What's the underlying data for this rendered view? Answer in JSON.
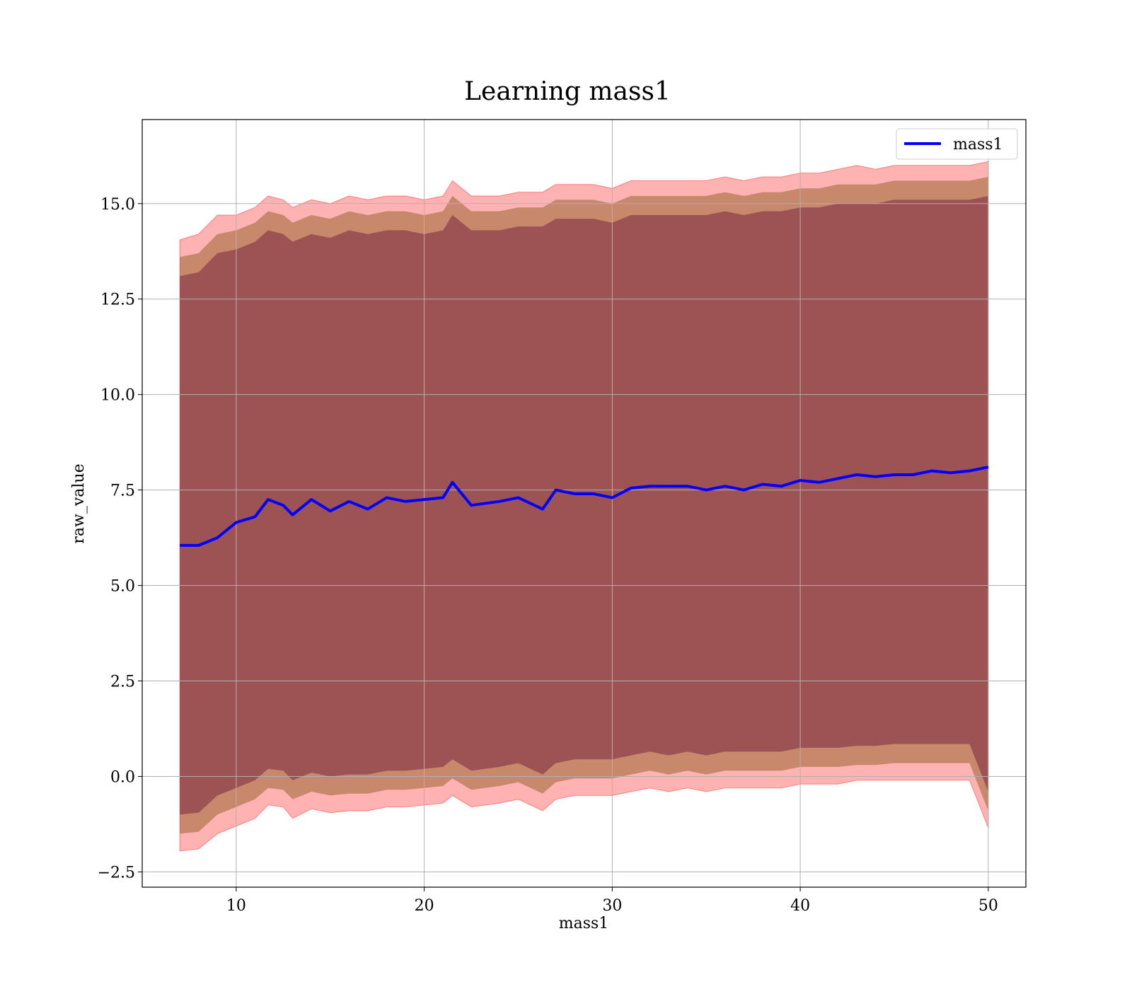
{
  "chart_data": {
    "type": "area",
    "title": "Learning mass1",
    "xlabel": "mass1",
    "ylabel": "raw_value",
    "xlim": [
      5,
      52
    ],
    "ylim": [
      -2.9,
      17.2
    ],
    "grid": true,
    "legend": {
      "location": "upper right",
      "entries": [
        "mass1"
      ]
    },
    "x_ticks": [
      10,
      20,
      30,
      40,
      50
    ],
    "x_tick_labels": [
      "10",
      "20",
      "30",
      "40",
      "50"
    ],
    "y_ticks": [
      -2.5,
      0.0,
      2.5,
      5.0,
      7.5,
      10.0,
      12.5,
      15.0
    ],
    "y_tick_labels": [
      "−2.5",
      "0.0",
      "2.5",
      "5.0",
      "7.5",
      "10.0",
      "12.5",
      "15.0"
    ],
    "colors": {
      "line": "#0000ff",
      "band_outer": "#ff0000",
      "band_middle": "#996633",
      "band_inner": "#7a2840",
      "grid": "#b0b0b0"
    },
    "series": [
      {
        "name": "mass1",
        "x": [
          7.0,
          8.0,
          9.0,
          10.0,
          11.0,
          11.7,
          12.5,
          13.0,
          14.0,
          15.0,
          16.0,
          17.0,
          18.0,
          19.0,
          20.0,
          21.0,
          21.5,
          22.5,
          24.0,
          25.0,
          26.3,
          27.0,
          28.0,
          29.0,
          30.0,
          31.0,
          32.0,
          33.0,
          34.0,
          35.0,
          36.0,
          37.0,
          38.0,
          39.0,
          40.0,
          41.0,
          42.0,
          43.0,
          44.0,
          45.0,
          46.0,
          47.0,
          48.0,
          49.0,
          50.0
        ],
        "y": [
          6.05,
          6.05,
          6.25,
          6.65,
          6.8,
          7.25,
          7.1,
          6.85,
          7.25,
          6.95,
          7.2,
          7.0,
          7.3,
          7.2,
          7.25,
          7.3,
          7.7,
          7.1,
          7.2,
          7.3,
          7.0,
          7.5,
          7.4,
          7.4,
          7.3,
          7.55,
          7.6,
          7.6,
          7.6,
          7.5,
          7.6,
          7.5,
          7.65,
          7.6,
          7.75,
          7.7,
          7.8,
          7.9,
          7.85,
          7.9,
          7.9,
          8.0,
          7.95,
          8.0,
          8.1
        ],
        "band_outer": {
          "upper": [
            14.05,
            14.2,
            14.7,
            14.7,
            14.9,
            15.2,
            15.1,
            14.9,
            15.1,
            15.0,
            15.2,
            15.1,
            15.2,
            15.2,
            15.1,
            15.2,
            15.6,
            15.2,
            15.2,
            15.3,
            15.3,
            15.5,
            15.5,
            15.5,
            15.4,
            15.6,
            15.6,
            15.6,
            15.6,
            15.6,
            15.7,
            15.6,
            15.7,
            15.7,
            15.8,
            15.8,
            15.9,
            16.0,
            15.9,
            16.0,
            16.0,
            16.0,
            16.0,
            16.0,
            16.1
          ],
          "lower": [
            -1.95,
            -1.9,
            -1.5,
            -1.3,
            -1.1,
            -0.75,
            -0.8,
            -1.1,
            -0.85,
            -0.95,
            -0.9,
            -0.9,
            -0.8,
            -0.8,
            -0.75,
            -0.7,
            -0.5,
            -0.8,
            -0.7,
            -0.6,
            -0.9,
            -0.6,
            -0.5,
            -0.5,
            -0.5,
            -0.4,
            -0.3,
            -0.4,
            -0.3,
            -0.4,
            -0.3,
            -0.3,
            -0.3,
            -0.3,
            -0.2,
            -0.2,
            -0.2,
            -0.1,
            -0.1,
            -0.1,
            -0.1,
            -0.1,
            -0.1,
            -0.1,
            -1.35
          ]
        },
        "band_middle": {
          "upper": [
            13.6,
            13.7,
            14.2,
            14.3,
            14.5,
            14.8,
            14.7,
            14.5,
            14.7,
            14.6,
            14.8,
            14.7,
            14.8,
            14.8,
            14.7,
            14.8,
            15.2,
            14.8,
            14.8,
            14.9,
            14.9,
            15.1,
            15.1,
            15.1,
            15.0,
            15.2,
            15.2,
            15.2,
            15.2,
            15.2,
            15.3,
            15.2,
            15.3,
            15.3,
            15.4,
            15.4,
            15.5,
            15.5,
            15.5,
            15.6,
            15.6,
            15.6,
            15.6,
            15.6,
            15.7
          ],
          "lower": [
            -1.5,
            -1.45,
            -1.0,
            -0.8,
            -0.6,
            -0.3,
            -0.35,
            -0.6,
            -0.4,
            -0.5,
            -0.45,
            -0.45,
            -0.35,
            -0.35,
            -0.3,
            -0.25,
            -0.05,
            -0.35,
            -0.25,
            -0.15,
            -0.45,
            -0.15,
            -0.05,
            -0.05,
            -0.05,
            0.05,
            0.15,
            0.05,
            0.15,
            0.05,
            0.15,
            0.15,
            0.15,
            0.15,
            0.25,
            0.25,
            0.25,
            0.3,
            0.3,
            0.35,
            0.35,
            0.35,
            0.35,
            0.35,
            -0.9
          ]
        },
        "band_inner": {
          "upper": [
            13.1,
            13.2,
            13.7,
            13.8,
            14.0,
            14.3,
            14.2,
            14.0,
            14.2,
            14.1,
            14.3,
            14.2,
            14.3,
            14.3,
            14.2,
            14.3,
            14.7,
            14.3,
            14.3,
            14.4,
            14.4,
            14.6,
            14.6,
            14.6,
            14.5,
            14.7,
            14.7,
            14.7,
            14.7,
            14.7,
            14.8,
            14.7,
            14.8,
            14.8,
            14.9,
            14.9,
            15.0,
            15.0,
            15.0,
            15.1,
            15.1,
            15.1,
            15.1,
            15.1,
            15.2
          ],
          "lower": [
            -1.0,
            -0.95,
            -0.5,
            -0.3,
            -0.1,
            0.2,
            0.15,
            -0.1,
            0.1,
            0.0,
            0.05,
            0.05,
            0.15,
            0.15,
            0.2,
            0.25,
            0.45,
            0.15,
            0.25,
            0.35,
            0.05,
            0.35,
            0.45,
            0.45,
            0.45,
            0.55,
            0.65,
            0.55,
            0.65,
            0.55,
            0.65,
            0.65,
            0.65,
            0.65,
            0.75,
            0.75,
            0.75,
            0.8,
            0.8,
            0.85,
            0.85,
            0.85,
            0.85,
            0.85,
            -0.4
          ]
        }
      }
    ]
  }
}
